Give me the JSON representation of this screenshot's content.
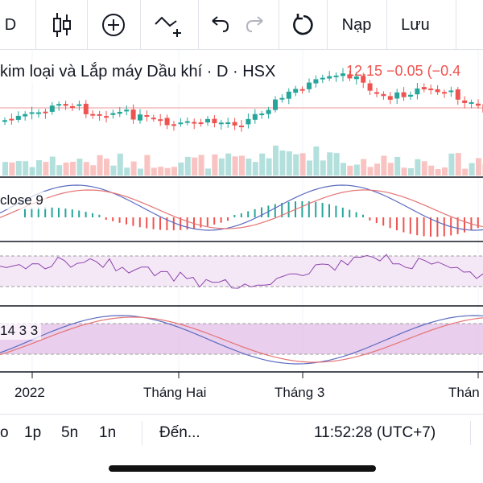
{
  "toolbar": {
    "interval": "D",
    "undo_icon": "undo-icon",
    "redo_icon": "redo-icon",
    "load_label": "Nạp",
    "save_label": "Lưu"
  },
  "legend": {
    "title": "kim loại và Lắp máy Dầu khí · D · HSX",
    "price_change": "12.15 −0.05 (−0.4"
  },
  "panes": {
    "macd_label": "close 9",
    "stoch_label": "14 3 3"
  },
  "time_axis": {
    "labels": [
      "2022",
      "Tháng Hai",
      "Tháng 3",
      "Thán"
    ]
  },
  "bottom_bar": {
    "range_partial": "o",
    "ranges": [
      "1p",
      "5n",
      "1n"
    ],
    "goto_label": "Đến...",
    "clock": "11:52:28 (UTC+7)"
  },
  "colors": {
    "up": "#26a69a",
    "down": "#ef5350",
    "band_fill": "#e1bee7",
    "line_blue": "#5c6bc0",
    "line_red": "#e57373"
  },
  "chart_data": {
    "type": "candlestick",
    "x_labels": [
      "2022",
      "Tháng Hai",
      "Tháng 3",
      "Thán"
    ],
    "last_close": 12.15,
    "change": -0.05
  }
}
